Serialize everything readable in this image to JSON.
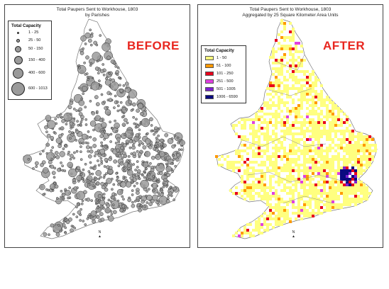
{
  "left": {
    "title1": "Total Paupers Sent to Workhouse, 1803",
    "title2": "by Parishes",
    "label": "BEFORE",
    "legend_title": "Total Capacity",
    "legend": [
      "1 - 25",
      "25 - 50",
      "50 - 150",
      "150 - 400",
      "400 - 600",
      "600 - 1013"
    ],
    "north": "N"
  },
  "right": {
    "title1": "Total Paupers Sent to Workhouse, 1803",
    "title2": "Aggregated by 25 Square Kilometer Area Units",
    "label": "AFTER",
    "legend_title": "Total Capacity",
    "legend": [
      {
        "label": "1 - 50",
        "color": "#ffff80"
      },
      {
        "label": "51 - 100",
        "color": "#ff9900"
      },
      {
        "label": "101 - 250",
        "color": "#e8001c"
      },
      {
        "label": "251 - 500",
        "color": "#e040e0"
      },
      {
        "label": "501 - 1005",
        "color": "#8020d0"
      },
      {
        "label": "1006 - 6590",
        "color": "#0a0a80"
      }
    ],
    "north": "N"
  },
  "colors": {
    "label_red": "#e8261f",
    "circle_fill": "#9a9a9a",
    "land_fill": "#ffffff",
    "border": "#888888"
  }
}
